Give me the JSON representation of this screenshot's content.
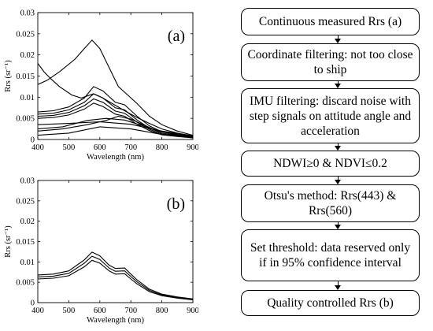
{
  "chart_data": [
    {
      "type": "line",
      "panel_label": "(a)",
      "xlabel": "Wavelength (nm)",
      "ylabel": "Rrs (sr⁻¹)",
      "xlim": [
        400,
        900
      ],
      "ylim": [
        0,
        0.03
      ],
      "x_ticks": [
        "400",
        "500",
        "600",
        "700",
        "800",
        "900"
      ],
      "y_ticks": [
        "0",
        "0.005",
        "0.01",
        "0.015",
        "0.02",
        "0.025",
        "0.03"
      ],
      "series": [
        {
          "x": [
            400,
            430,
            470,
            520,
            550,
            575,
            600,
            630,
            660,
            690,
            720,
            760,
            800,
            850,
            900
          ],
          "values": [
            0.013,
            0.014,
            0.016,
            0.019,
            0.0215,
            0.0235,
            0.0215,
            0.017,
            0.0125,
            0.0105,
            0.0085,
            0.0055,
            0.0035,
            0.002,
            0.001
          ]
        },
        {
          "x": [
            400,
            420,
            440,
            470,
            510,
            540,
            560,
            580,
            610,
            640,
            680,
            720,
            760,
            800,
            850,
            900
          ],
          "values": [
            0.018,
            0.016,
            0.0145,
            0.0125,
            0.0105,
            0.0098,
            0.0103,
            0.0108,
            0.0098,
            0.0085,
            0.0068,
            0.0052,
            0.0038,
            0.0025,
            0.0015,
            0.0008
          ]
        },
        {
          "x": [
            400,
            450,
            500,
            550,
            580,
            610,
            650,
            680,
            720,
            760,
            800,
            850,
            900
          ],
          "values": [
            0.0065,
            0.0068,
            0.0077,
            0.0098,
            0.0125,
            0.0115,
            0.0088,
            0.0082,
            0.0055,
            0.0032,
            0.0018,
            0.0012,
            0.0008
          ]
        },
        {
          "x": [
            400,
            450,
            500,
            550,
            580,
            610,
            650,
            680,
            720,
            760,
            800,
            850,
            900
          ],
          "values": [
            0.006,
            0.0062,
            0.007,
            0.0088,
            0.0108,
            0.0098,
            0.0075,
            0.007,
            0.0046,
            0.0027,
            0.0015,
            0.001,
            0.0006
          ]
        },
        {
          "x": [
            400,
            450,
            500,
            550,
            580,
            610,
            650,
            680,
            720,
            760,
            800,
            850,
            900
          ],
          "values": [
            0.0055,
            0.0057,
            0.0064,
            0.008,
            0.0096,
            0.0088,
            0.0067,
            0.0062,
            0.0041,
            0.0024,
            0.0013,
            0.0009,
            0.0005
          ]
        },
        {
          "x": [
            400,
            450,
            500,
            550,
            580,
            610,
            650,
            680,
            720,
            760,
            800,
            850,
            900
          ],
          "values": [
            0.005,
            0.0052,
            0.0058,
            0.0072,
            0.0086,
            0.0078,
            0.006,
            0.0055,
            0.0036,
            0.0021,
            0.0011,
            0.0007,
            0.0004
          ]
        },
        {
          "x": [
            400,
            480,
            560,
            620,
            660,
            700,
            740,
            780,
            840,
            900
          ],
          "values": [
            0.002,
            0.0025,
            0.0035,
            0.0045,
            0.0055,
            0.0048,
            0.0035,
            0.0022,
            0.0012,
            0.0006
          ]
        },
        {
          "x": [
            400,
            480,
            560,
            620,
            680,
            740,
            800,
            900
          ],
          "values": [
            0.0025,
            0.003,
            0.0045,
            0.005,
            0.0046,
            0.0032,
            0.0018,
            0.0008
          ]
        },
        {
          "x": [
            400,
            500,
            600,
            700,
            800,
            900
          ],
          "values": [
            0.0035,
            0.0038,
            0.0042,
            0.0036,
            0.002,
            0.0009
          ]
        },
        {
          "x": [
            400,
            500,
            600,
            700,
            800,
            900
          ],
          "values": [
            0.001,
            0.0015,
            0.003,
            0.0025,
            0.0012,
            0.0004
          ]
        }
      ]
    },
    {
      "type": "line",
      "panel_label": "(b)",
      "xlabel": "Wavelength (nm)",
      "ylabel": "Rrs (sr⁻¹)",
      "xlim": [
        400,
        900
      ],
      "ylim": [
        0,
        0.03
      ],
      "x_ticks": [
        "400",
        "500",
        "600",
        "700",
        "800",
        "900"
      ],
      "y_ticks": [
        "0",
        "0.005",
        "0.01",
        "0.015",
        "0.02",
        "0.025",
        "0.03"
      ],
      "series": [
        {
          "x": [
            400,
            450,
            500,
            550,
            575,
            600,
            630,
            650,
            680,
            700,
            720,
            760,
            800,
            850,
            900
          ],
          "values": [
            0.0068,
            0.007,
            0.0078,
            0.0105,
            0.0124,
            0.0115,
            0.0092,
            0.0084,
            0.0085,
            0.007,
            0.0056,
            0.0033,
            0.0021,
            0.0014,
            0.0009
          ]
        },
        {
          "x": [
            400,
            450,
            500,
            550,
            575,
            600,
            630,
            650,
            680,
            700,
            720,
            760,
            800,
            850,
            900
          ],
          "values": [
            0.0063,
            0.0065,
            0.0072,
            0.0097,
            0.0114,
            0.0106,
            0.0085,
            0.0077,
            0.0078,
            0.0064,
            0.0051,
            0.003,
            0.0019,
            0.0012,
            0.0008
          ]
        },
        {
          "x": [
            400,
            450,
            500,
            550,
            575,
            600,
            630,
            650,
            680,
            700,
            720,
            760,
            800,
            850,
            900
          ],
          "values": [
            0.0058,
            0.006,
            0.0066,
            0.0088,
            0.0104,
            0.0097,
            0.0078,
            0.007,
            0.0071,
            0.0058,
            0.0046,
            0.0027,
            0.0017,
            0.0011,
            0.0007
          ]
        }
      ]
    }
  ],
  "flowchart": {
    "steps": [
      "Continuous measured Rrs (a)",
      "Coordinate filtering: not too close to ship",
      "IMU filtering: discard noise with step signals on attitude angle and acceleration",
      "NDWI≥0 & NDVI≤0.2",
      "Otsu's method: Rrs(443) & Rrs(560)",
      "Set threshold: data reserved only if in 95% confidence interval",
      "Quality controlled Rrs (b)"
    ]
  }
}
